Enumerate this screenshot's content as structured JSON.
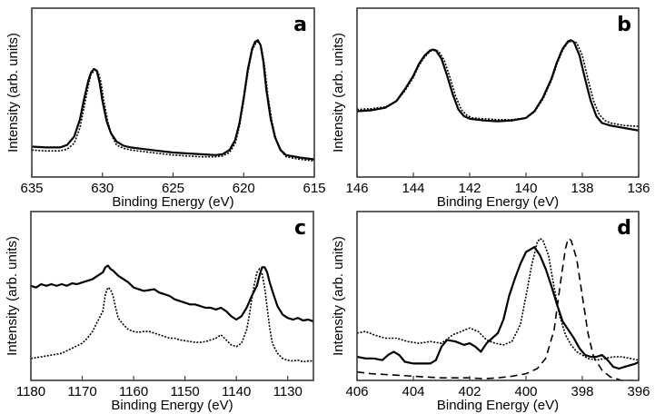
{
  "chart_data": [
    {
      "panel": "a",
      "type": "line",
      "title": "",
      "xlabel": "Binding Energy (eV)",
      "ylabel": "Intensity (arb. units)",
      "xlim": [
        635,
        615
      ],
      "ylim": [
        0,
        1
      ],
      "x_reversed": true,
      "xticks": [
        635,
        630,
        625,
        620,
        615
      ],
      "xtick_labels": [
        "635",
        "630",
        "625",
        "620",
        "615"
      ],
      "grid": false,
      "legend": "none",
      "series": [
        {
          "name": "solid",
          "style": "solid",
          "x": [
            635,
            634,
            633,
            632.5,
            632,
            631.6,
            631.3,
            631.0,
            630.8,
            630.6,
            630.4,
            630.2,
            630.0,
            629.7,
            629.4,
            629.0,
            628.5,
            628,
            627,
            626,
            625,
            624,
            623,
            622,
            621.5,
            621,
            620.6,
            620.3,
            620.0,
            619.7,
            619.4,
            619.2,
            619.0,
            618.8,
            618.6,
            618.4,
            618.1,
            617.8,
            617.4,
            617,
            616,
            615
          ],
          "y": [
            0.18,
            0.175,
            0.175,
            0.19,
            0.24,
            0.34,
            0.46,
            0.57,
            0.62,
            0.64,
            0.63,
            0.56,
            0.45,
            0.33,
            0.26,
            0.21,
            0.185,
            0.175,
            0.165,
            0.155,
            0.145,
            0.14,
            0.135,
            0.13,
            0.135,
            0.16,
            0.22,
            0.32,
            0.47,
            0.64,
            0.76,
            0.8,
            0.81,
            0.78,
            0.68,
            0.52,
            0.35,
            0.24,
            0.16,
            0.13,
            0.115,
            0.105
          ]
        },
        {
          "name": "dotted",
          "style": "dotted",
          "x": [
            635,
            634,
            633,
            632.5,
            632,
            631.6,
            631.3,
            631.0,
            630.8,
            630.5,
            630.3,
            630.1,
            629.9,
            629.6,
            629.3,
            629.0,
            628.5,
            628,
            627,
            626,
            625,
            624,
            623,
            622,
            621.5,
            621,
            620.6,
            620.3,
            620.0,
            619.7,
            619.4,
            619.1,
            618.9,
            618.7,
            618.5,
            618.3,
            618.0,
            617.7,
            617.3,
            617,
            616,
            615
          ],
          "y": [
            0.16,
            0.155,
            0.155,
            0.165,
            0.2,
            0.29,
            0.41,
            0.54,
            0.61,
            0.635,
            0.62,
            0.56,
            0.45,
            0.32,
            0.24,
            0.19,
            0.17,
            0.16,
            0.15,
            0.14,
            0.13,
            0.125,
            0.12,
            0.12,
            0.125,
            0.145,
            0.2,
            0.3,
            0.45,
            0.62,
            0.75,
            0.8,
            0.8,
            0.75,
            0.64,
            0.49,
            0.33,
            0.22,
            0.15,
            0.12,
            0.105,
            0.095
          ]
        }
      ],
      "annotations": [
        "a"
      ]
    },
    {
      "panel": "b",
      "type": "line",
      "title": "",
      "xlabel": "Binding Energy (eV)",
      "ylabel": "Intensity (arb. units)",
      "xlim": [
        146,
        136
      ],
      "ylim": [
        0,
        1
      ],
      "x_reversed": true,
      "xticks": [
        146,
        144,
        142,
        140,
        138,
        136
      ],
      "xtick_labels": [
        "146",
        "144",
        "142",
        "140",
        "138",
        "136"
      ],
      "grid": false,
      "legend": "none",
      "series": [
        {
          "name": "solid",
          "style": "solid",
          "x": [
            146,
            145.5,
            145.0,
            144.6,
            144.3,
            144.0,
            143.8,
            143.6,
            143.4,
            143.3,
            143.2,
            143.0,
            142.8,
            142.6,
            142.4,
            142.2,
            142.0,
            141.5,
            141,
            140.5,
            140.0,
            139.7,
            139.4,
            139.1,
            138.9,
            138.7,
            138.5,
            138.4,
            138.3,
            138.1,
            137.9,
            137.7,
            137.5,
            137.3,
            137.0,
            136.5,
            136
          ],
          "y": [
            0.39,
            0.395,
            0.41,
            0.45,
            0.52,
            0.6,
            0.67,
            0.72,
            0.75,
            0.755,
            0.75,
            0.7,
            0.6,
            0.49,
            0.4,
            0.36,
            0.345,
            0.335,
            0.33,
            0.335,
            0.35,
            0.39,
            0.47,
            0.58,
            0.68,
            0.76,
            0.805,
            0.81,
            0.8,
            0.72,
            0.58,
            0.45,
            0.36,
            0.32,
            0.305,
            0.29,
            0.275
          ]
        },
        {
          "name": "dotted",
          "style": "dotted",
          "x": [
            146,
            145.5,
            145.0,
            144.6,
            144.3,
            144.0,
            143.8,
            143.6,
            143.4,
            143.25,
            143.1,
            142.9,
            142.7,
            142.5,
            142.3,
            142.1,
            141.9,
            141.5,
            141,
            140.5,
            140.0,
            139.7,
            139.4,
            139.1,
            138.9,
            138.7,
            138.5,
            138.35,
            138.2,
            138.0,
            137.8,
            137.6,
            137.4,
            137.2,
            137.0,
            136.5,
            136
          ],
          "y": [
            0.4,
            0.405,
            0.415,
            0.45,
            0.51,
            0.59,
            0.66,
            0.71,
            0.745,
            0.75,
            0.745,
            0.69,
            0.59,
            0.48,
            0.4,
            0.365,
            0.35,
            0.345,
            0.34,
            0.34,
            0.35,
            0.385,
            0.46,
            0.57,
            0.67,
            0.75,
            0.8,
            0.805,
            0.795,
            0.72,
            0.58,
            0.45,
            0.37,
            0.335,
            0.32,
            0.305,
            0.3
          ]
        }
      ],
      "annotations": [
        "b"
      ]
    },
    {
      "panel": "c",
      "type": "line",
      "title": "",
      "xlabel": "Binding Energy (eV)",
      "ylabel": "Intensity (arb. units)",
      "xlim": [
        1180,
        1125
      ],
      "ylim": [
        0,
        1
      ],
      "x_reversed": true,
      "xticks": [
        1180,
        1170,
        1160,
        1150,
        1140,
        1130
      ],
      "xtick_labels": [
        "1180",
        "1170",
        "1160",
        "1150",
        "1140",
        "1130"
      ],
      "grid": false,
      "legend": "none",
      "series": [
        {
          "name": "solid",
          "style": "solid",
          "x": [
            1180,
            1179,
            1178,
            1177,
            1176,
            1175,
            1174,
            1173,
            1172,
            1171,
            1170,
            1169,
            1168,
            1167,
            1166,
            1165.5,
            1165,
            1164.5,
            1164,
            1163,
            1162,
            1161,
            1160,
            1159,
            1158,
            1157,
            1156,
            1155,
            1154,
            1153,
            1152,
            1151,
            1150,
            1149,
            1148,
            1147,
            1146,
            1145,
            1144,
            1143,
            1142,
            1141,
            1140,
            1139,
            1138,
            1137,
            1136,
            1135.5,
            1135,
            1134.5,
            1134,
            1133.5,
            1133,
            1132,
            1131,
            1130,
            1129,
            1128,
            1127,
            1126,
            1125
          ],
          "y": [
            0.56,
            0.55,
            0.57,
            0.56,
            0.57,
            0.56,
            0.57,
            0.56,
            0.575,
            0.57,
            0.58,
            0.59,
            0.6,
            0.62,
            0.64,
            0.67,
            0.68,
            0.66,
            0.65,
            0.62,
            0.6,
            0.58,
            0.55,
            0.54,
            0.53,
            0.535,
            0.54,
            0.52,
            0.51,
            0.5,
            0.48,
            0.47,
            0.46,
            0.45,
            0.45,
            0.44,
            0.43,
            0.43,
            0.42,
            0.43,
            0.41,
            0.38,
            0.36,
            0.38,
            0.43,
            0.5,
            0.56,
            0.62,
            0.67,
            0.67,
            0.64,
            0.58,
            0.53,
            0.44,
            0.39,
            0.37,
            0.36,
            0.37,
            0.355,
            0.36,
            0.35
          ]
        },
        {
          "name": "dotted",
          "style": "dotted",
          "x": [
            1180,
            1178,
            1176,
            1174,
            1172,
            1170,
            1169,
            1168,
            1167,
            1166,
            1165.5,
            1165,
            1164.5,
            1164,
            1163.5,
            1163,
            1162,
            1161,
            1160,
            1159,
            1158,
            1157,
            1156,
            1155,
            1154,
            1153,
            1152,
            1151,
            1150,
            1149,
            1148,
            1147,
            1146,
            1145,
            1144,
            1143,
            1142,
            1141,
            1140,
            1139,
            1138,
            1137.5,
            1137,
            1136.5,
            1136,
            1135.5,
            1135,
            1134.5,
            1134,
            1133.5,
            1133,
            1132,
            1131,
            1130,
            1129,
            1128,
            1127,
            1126,
            1125
          ],
          "y": [
            0.13,
            0.14,
            0.15,
            0.16,
            0.19,
            0.22,
            0.25,
            0.29,
            0.35,
            0.41,
            0.51,
            0.55,
            0.54,
            0.5,
            0.43,
            0.37,
            0.33,
            0.3,
            0.29,
            0.285,
            0.29,
            0.29,
            0.28,
            0.27,
            0.26,
            0.25,
            0.25,
            0.24,
            0.235,
            0.23,
            0.225,
            0.225,
            0.23,
            0.24,
            0.25,
            0.27,
            0.24,
            0.21,
            0.2,
            0.22,
            0.3,
            0.38,
            0.48,
            0.57,
            0.64,
            0.66,
            0.63,
            0.55,
            0.43,
            0.31,
            0.22,
            0.16,
            0.13,
            0.12,
            0.115,
            0.12,
            0.11,
            0.115,
            0.115
          ]
        }
      ],
      "annotations": [
        "c"
      ]
    },
    {
      "panel": "d",
      "type": "line",
      "title": "",
      "xlabel": "Binding Energy (eV)",
      "ylabel": "Intensity (arb. units)",
      "xlim": [
        406,
        396
      ],
      "ylim": [
        0,
        1
      ],
      "x_reversed": true,
      "xticks": [
        406,
        404,
        402,
        400,
        398,
        396
      ],
      "xtick_labels": [
        "406",
        "404",
        "402",
        "400",
        "398",
        "396"
      ],
      "grid": false,
      "legend": "none",
      "series": [
        {
          "name": "solid",
          "style": "solid",
          "x": [
            406,
            405.7,
            405.4,
            405.1,
            404.9,
            404.7,
            404.5,
            404.3,
            404.0,
            403.7,
            403.4,
            403.2,
            403.0,
            402.8,
            402.5,
            402.2,
            402.0,
            401.8,
            401.6,
            401.4,
            401.2,
            401.0,
            400.8,
            400.6,
            400.4,
            400.2,
            400.0,
            399.8,
            399.7,
            399.5,
            399.3,
            399.1,
            398.9,
            398.7,
            398.5,
            398.3,
            398.1,
            397.9,
            397.7,
            397.5,
            397.3,
            397.1,
            396.9,
            396.7,
            396.5,
            396.3,
            396.1,
            396
          ],
          "y": [
            0.14,
            0.13,
            0.13,
            0.12,
            0.15,
            0.17,
            0.15,
            0.11,
            0.1,
            0.1,
            0.1,
            0.12,
            0.2,
            0.24,
            0.23,
            0.21,
            0.22,
            0.2,
            0.17,
            0.22,
            0.25,
            0.28,
            0.36,
            0.5,
            0.6,
            0.69,
            0.76,
            0.78,
            0.79,
            0.74,
            0.66,
            0.56,
            0.45,
            0.35,
            0.3,
            0.25,
            0.19,
            0.15,
            0.14,
            0.14,
            0.15,
            0.12,
            0.08,
            0.07,
            0.08,
            0.09,
            0.1,
            0.11
          ]
        },
        {
          "name": "dotted",
          "style": "dotted",
          "x": [
            406,
            405.7,
            405.4,
            405.0,
            404.6,
            404.2,
            403.8,
            403.4,
            403.0,
            402.6,
            402.3,
            402.0,
            401.7,
            401.4,
            401.1,
            400.8,
            400.5,
            400.2,
            400.0,
            399.8,
            399.6,
            399.5,
            399.4,
            399.2,
            399.0,
            398.8,
            398.6,
            398.4,
            398.2,
            398.0,
            397.8,
            397.5,
            397.2,
            396.9,
            396.6,
            396.3,
            396
          ],
          "y": [
            0.28,
            0.29,
            0.27,
            0.25,
            0.25,
            0.23,
            0.22,
            0.23,
            0.22,
            0.27,
            0.29,
            0.31,
            0.29,
            0.24,
            0.22,
            0.21,
            0.23,
            0.33,
            0.5,
            0.68,
            0.82,
            0.84,
            0.83,
            0.74,
            0.55,
            0.38,
            0.27,
            0.21,
            0.17,
            0.15,
            0.13,
            0.12,
            0.13,
            0.14,
            0.14,
            0.13,
            0.12
          ]
        },
        {
          "name": "dashed",
          "style": "dashed",
          "x": [
            406,
            405.5,
            405,
            404.5,
            404,
            403.5,
            403,
            402.5,
            402,
            401.5,
            401,
            400.5,
            400,
            399.6,
            399.3,
            399.0,
            398.8,
            398.6,
            398.5,
            398.4,
            398.2,
            398.0,
            397.8,
            397.6,
            397.3,
            397.0,
            396.6,
            396.2
          ],
          "y": [
            0.05,
            0.04,
            0.035,
            0.03,
            0.025,
            0.02,
            0.015,
            0.015,
            0.015,
            0.01,
            0.015,
            0.025,
            0.04,
            0.07,
            0.13,
            0.3,
            0.55,
            0.78,
            0.84,
            0.83,
            0.72,
            0.5,
            0.28,
            0.14,
            0.06,
            0.02,
            0.0,
            0.0
          ]
        }
      ],
      "annotations": [
        "d"
      ]
    }
  ]
}
